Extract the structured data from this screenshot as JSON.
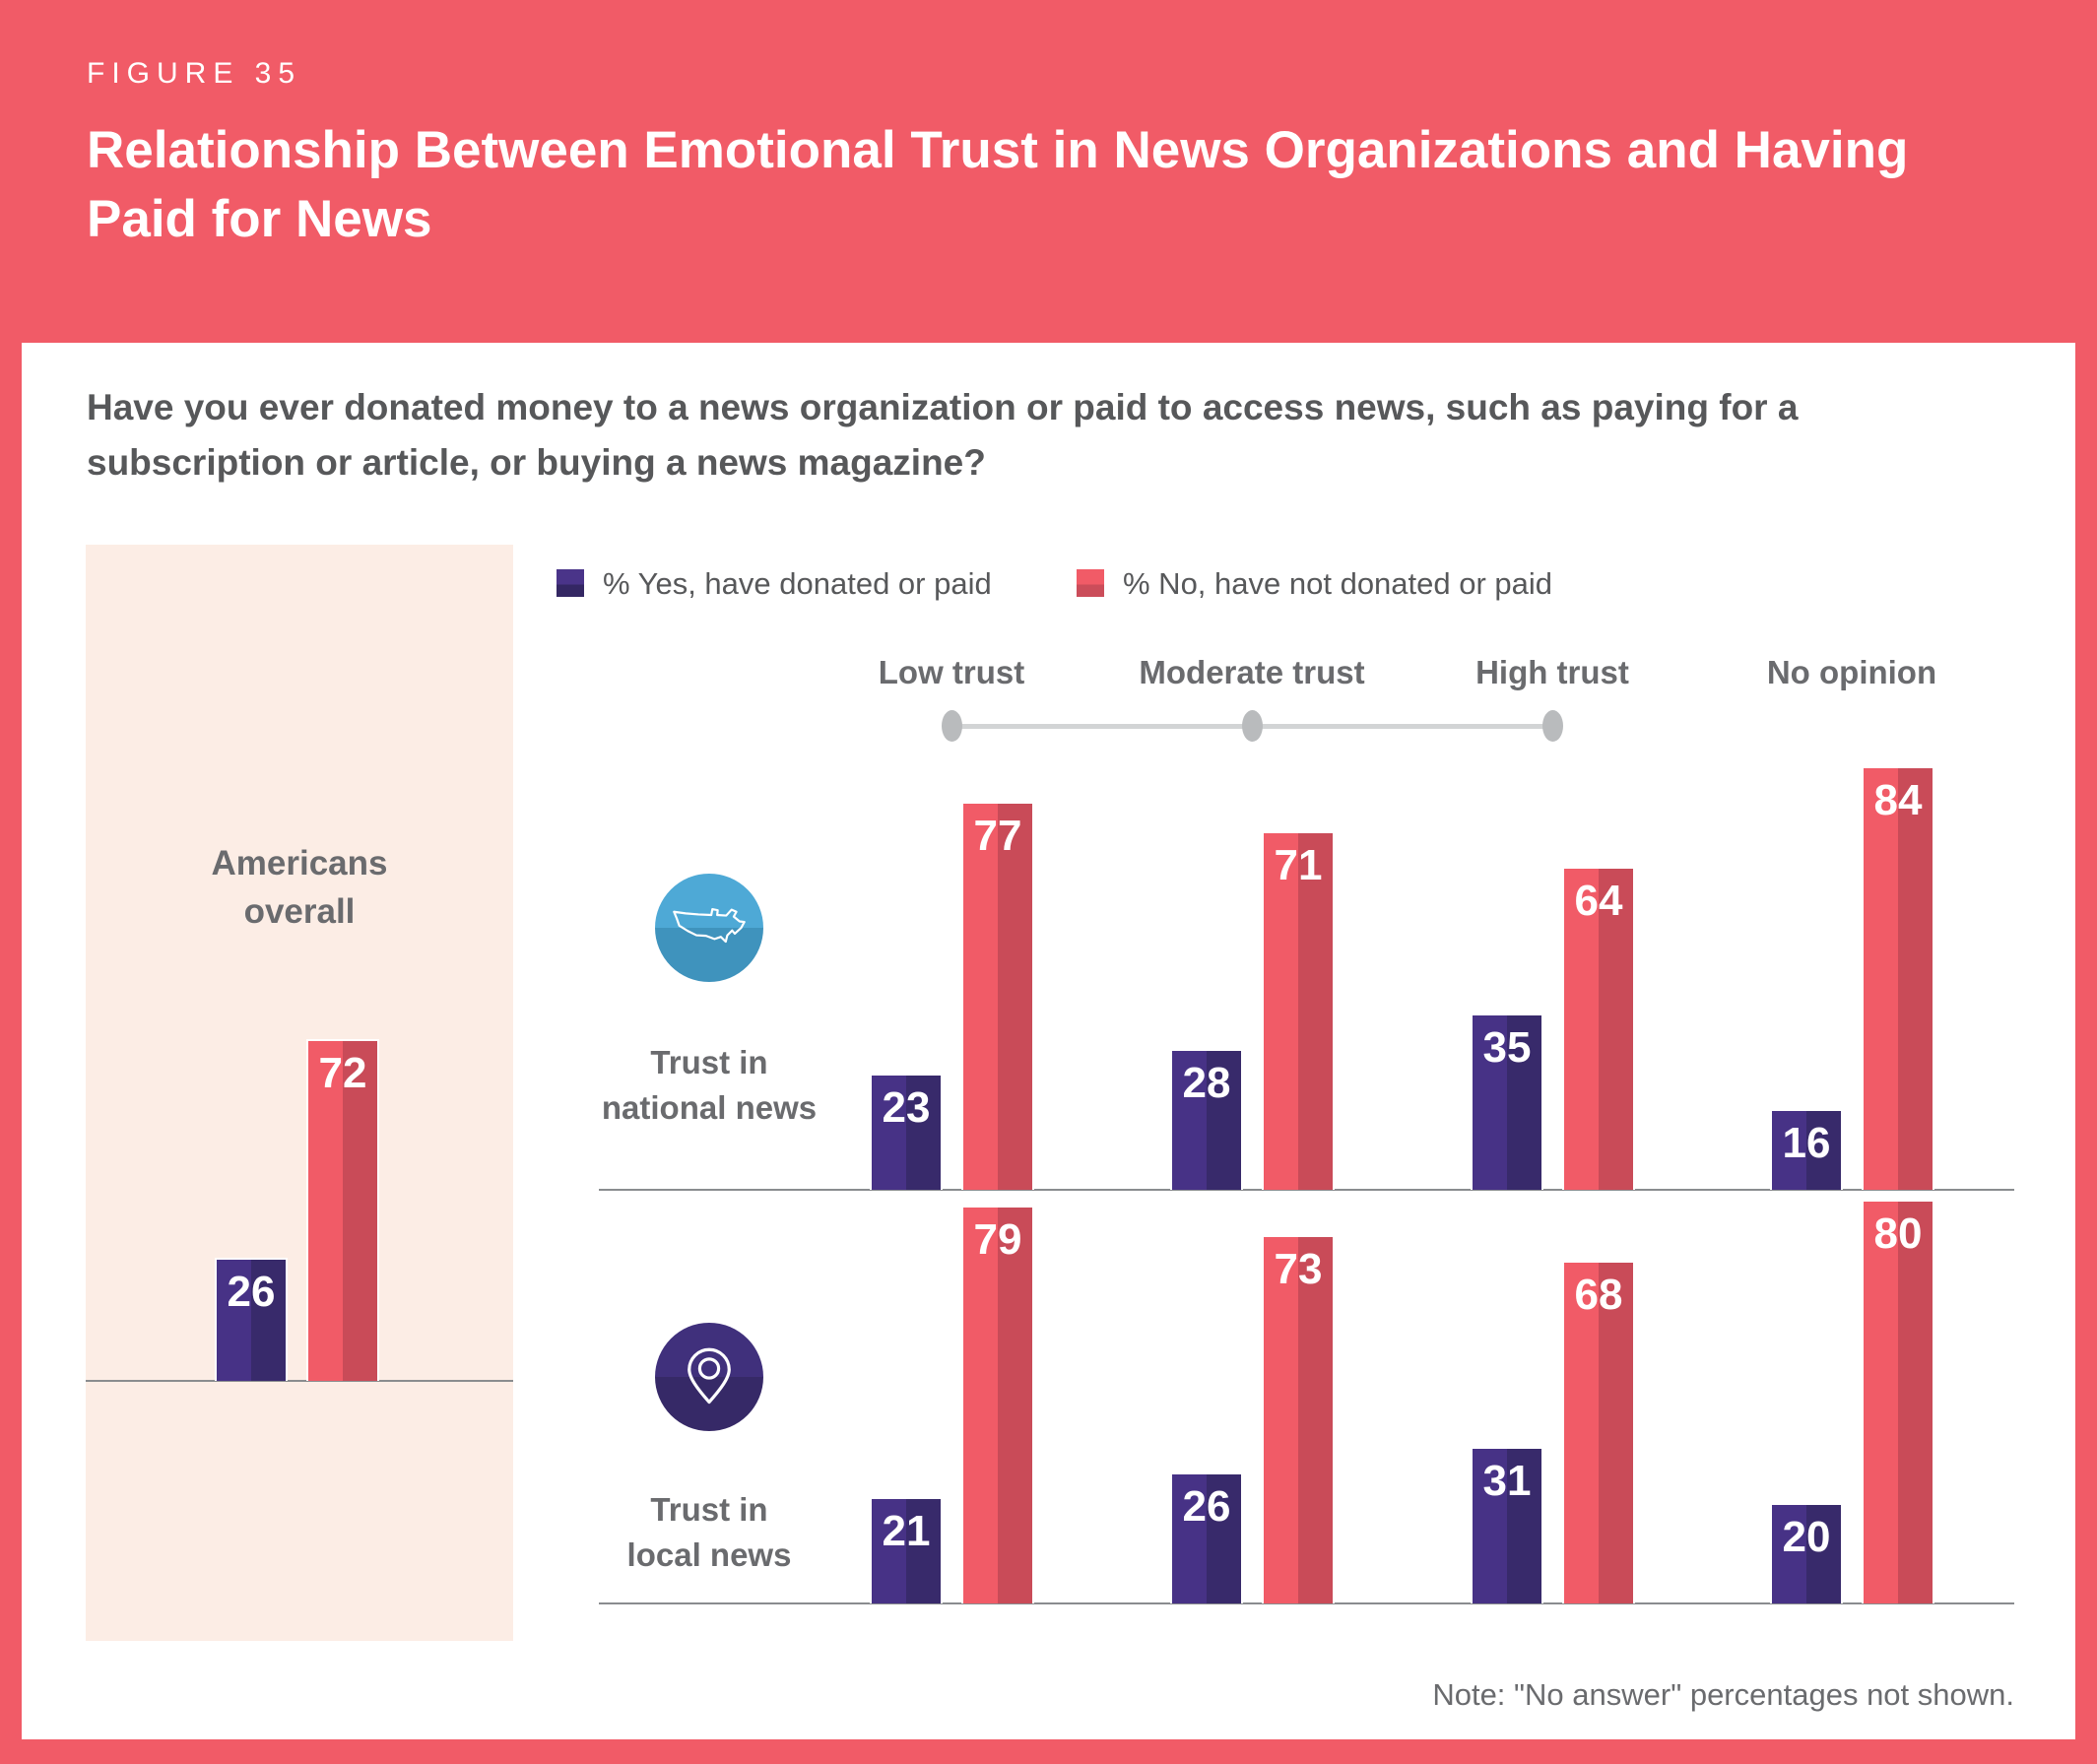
{
  "header": {
    "figure_label": "FIGURE 35",
    "title": "Relationship Between Emotional Trust in News Organizations and Having\nPaid for News"
  },
  "question": "Have you ever donated money to a news organization or paid to access news, such as paying for a\nsubscription or article, or buying a news magazine?",
  "legend": {
    "yes_label": "% Yes, have donated or paid",
    "no_label": "% No, have not donated or paid"
  },
  "overall_panel": {
    "label": "Americans\noverall",
    "yes": 26,
    "no": 72
  },
  "trust_scale": {
    "labels": [
      "Low trust",
      "Moderate trust",
      "High trust",
      "No opinion"
    ]
  },
  "rows": [
    {
      "icon": "us-map",
      "label": "Trust in\nnational news",
      "groups": [
        {
          "trust": "Low trust",
          "yes": 23,
          "no": 77
        },
        {
          "trust": "Moderate trust",
          "yes": 28,
          "no": 71
        },
        {
          "trust": "High trust",
          "yes": 35,
          "no": 64
        },
        {
          "trust": "No opinion",
          "yes": 16,
          "no": 84
        }
      ]
    },
    {
      "icon": "location-pin",
      "label": "Trust in\nlocal news",
      "groups": [
        {
          "trust": "Low trust",
          "yes": 21,
          "no": 79
        },
        {
          "trust": "Moderate trust",
          "yes": 26,
          "no": 73
        },
        {
          "trust": "High trust",
          "yes": 31,
          "no": 68
        },
        {
          "trust": "No opinion",
          "yes": 20,
          "no": 80
        }
      ]
    }
  ],
  "note": "Note: \"No answer\" percentages not shown.",
  "colors": {
    "frame_red": "#f15b67",
    "bar_no_light": "#f15b67",
    "bar_no_dark": "#c94b58",
    "bar_yes_light": "#473286",
    "bar_yes_dark": "#382a6b",
    "panel_cream": "#fcede5",
    "national_icon_blue": "#4ea9d6",
    "local_icon_purple": "#40307c",
    "text_gray": "#57585a",
    "label_gray": "#6a6b6e",
    "scale_gray": "#d2d4d5"
  },
  "chart_data": {
    "type": "bar",
    "title": "Relationship Between Emotional Trust in News Organizations and Having Paid for News",
    "subtitle": "Have you ever donated money to a news organization or paid to access news, such as paying for a subscription or article, or buying a news magazine?",
    "unit": "percent",
    "ylim": [
      0,
      100
    ],
    "grid": false,
    "legend_position": "top",
    "legend": [
      "% Yes, have donated or paid",
      "% No, have not donated or paid"
    ],
    "panels": [
      {
        "group": "Americans overall",
        "series": [
          {
            "name": "% Yes, have donated or paid",
            "values": [
              26
            ]
          },
          {
            "name": "% No, have not donated or paid",
            "values": [
              72
            ]
          }
        ]
      },
      {
        "group": "Trust in national news",
        "categories": [
          "Low trust",
          "Moderate trust",
          "High trust",
          "No opinion"
        ],
        "series": [
          {
            "name": "% Yes, have donated or paid",
            "values": [
              23,
              28,
              35,
              16
            ]
          },
          {
            "name": "% No, have not donated or paid",
            "values": [
              77,
              71,
              64,
              84
            ]
          }
        ]
      },
      {
        "group": "Trust in local news",
        "categories": [
          "Low trust",
          "Moderate trust",
          "High trust",
          "No opinion"
        ],
        "series": [
          {
            "name": "% Yes, have donated or paid",
            "values": [
              21,
              26,
              31,
              20
            ]
          },
          {
            "name": "% No, have not donated or paid",
            "values": [
              79,
              73,
              68,
              80
            ]
          }
        ]
      }
    ],
    "note": "Note: \"No answer\" percentages not shown."
  }
}
